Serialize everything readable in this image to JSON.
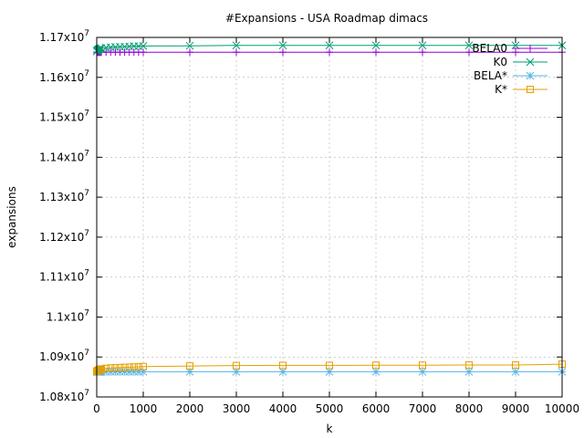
{
  "chart_data": {
    "type": "line",
    "title": "#Expansions - USA Roadmap dimacs",
    "xlabel": "k",
    "ylabel": "expansions",
    "xlim": [
      0,
      10000
    ],
    "ylim": [
      10800000,
      11700000
    ],
    "x_ticks": [
      0,
      1000,
      2000,
      3000,
      4000,
      5000,
      6000,
      7000,
      8000,
      9000,
      10000
    ],
    "x_tick_labels": [
      "0",
      "1000",
      "2000",
      "3000",
      "4000",
      "5000",
      "6000",
      "7000",
      "8000",
      "9000",
      "10000"
    ],
    "y_ticks": [
      10800000,
      10900000,
      11000000,
      11100000,
      11200000,
      11300000,
      11400000,
      11500000,
      11600000,
      11700000
    ],
    "y_tick_labels": [
      {
        "mant": "1.08x10",
        "exp": "7"
      },
      {
        "mant": "1.09x10",
        "exp": "7"
      },
      {
        "mant": "1.1x10",
        "exp": "7"
      },
      {
        "mant": "1.11x10",
        "exp": "7"
      },
      {
        "mant": "1.12x10",
        "exp": "7"
      },
      {
        "mant": "1.13x10",
        "exp": "7"
      },
      {
        "mant": "1.14x10",
        "exp": "7"
      },
      {
        "mant": "1.15x10",
        "exp": "7"
      },
      {
        "mant": "1.16x10",
        "exp": "7"
      },
      {
        "mant": "1.17x10",
        "exp": "7"
      }
    ],
    "grid": true,
    "legend_position": "top-right",
    "series": [
      {
        "name": "BELA0",
        "color": "#9400d3",
        "marker": "plus",
        "x": [
          1,
          10,
          20,
          30,
          40,
          50,
          60,
          70,
          80,
          90,
          100,
          200,
          300,
          400,
          500,
          600,
          700,
          800,
          900,
          1000,
          2000,
          3000,
          4000,
          5000,
          6000,
          7000,
          8000,
          9000,
          10000
        ],
        "y": [
          11663000,
          11663000,
          11663000,
          11663000,
          11663000,
          11663000,
          11663000,
          11663000,
          11663000,
          11663000,
          11663000,
          11663000,
          11663000,
          11663000,
          11663000,
          11663000,
          11663000,
          11663000,
          11663000,
          11663000,
          11663000,
          11663000,
          11663000,
          11663000,
          11663000,
          11663000,
          11663000,
          11663000,
          11663000
        ]
      },
      {
        "name": "K0",
        "color": "#009e73",
        "marker": "cross",
        "x": [
          1,
          10,
          20,
          30,
          40,
          50,
          60,
          70,
          80,
          90,
          100,
          200,
          300,
          400,
          500,
          600,
          700,
          800,
          900,
          1000,
          2000,
          3000,
          4000,
          5000,
          6000,
          7000,
          8000,
          9000,
          10000
        ],
        "y": [
          11665000,
          11667000,
          11668000,
          11669000,
          11670000,
          11670500,
          11671000,
          11671500,
          11672000,
          11672500,
          11673000,
          11674500,
          11675500,
          11676000,
          11676500,
          11677000,
          11677500,
          11678000,
          11678000,
          11678500,
          11679000,
          11680000,
          11680000,
          11680000,
          11680000,
          11680000,
          11680000,
          11680000,
          11680000
        ]
      },
      {
        "name": "BELA*",
        "color": "#56b4e9",
        "marker": "star",
        "x": [
          1,
          10,
          20,
          30,
          40,
          50,
          60,
          70,
          80,
          90,
          100,
          200,
          300,
          400,
          500,
          600,
          700,
          800,
          900,
          1000,
          2000,
          3000,
          4000,
          5000,
          6000,
          7000,
          8000,
          9000,
          10000
        ],
        "y": [
          10863000,
          10863000,
          10863000,
          10863000,
          10863000,
          10863000,
          10863000,
          10863000,
          10863000,
          10863000,
          10863000,
          10863000,
          10863000,
          10863000,
          10863000,
          10863000,
          10863000,
          10863000,
          10863000,
          10863000,
          10863000,
          10863000,
          10863000,
          10863000,
          10863000,
          10863000,
          10863000,
          10863000,
          10863000
        ]
      },
      {
        "name": "K*",
        "color": "#e69f00",
        "marker": "square",
        "x": [
          1,
          10,
          20,
          30,
          40,
          50,
          60,
          70,
          80,
          90,
          100,
          200,
          300,
          400,
          500,
          600,
          700,
          800,
          900,
          1000,
          2000,
          3000,
          4000,
          5000,
          6000,
          7000,
          8000,
          9000,
          10000
        ],
        "y": [
          10864000,
          10865000,
          10866000,
          10866500,
          10867000,
          10867500,
          10868000,
          10868500,
          10869000,
          10869500,
          10870000,
          10871500,
          10872500,
          10873000,
          10873500,
          10874000,
          10874500,
          10875000,
          10875500,
          10876000,
          10877500,
          10878500,
          10879000,
          10879000,
          10879500,
          10879500,
          10880000,
          10880000,
          10882000
        ]
      }
    ]
  }
}
